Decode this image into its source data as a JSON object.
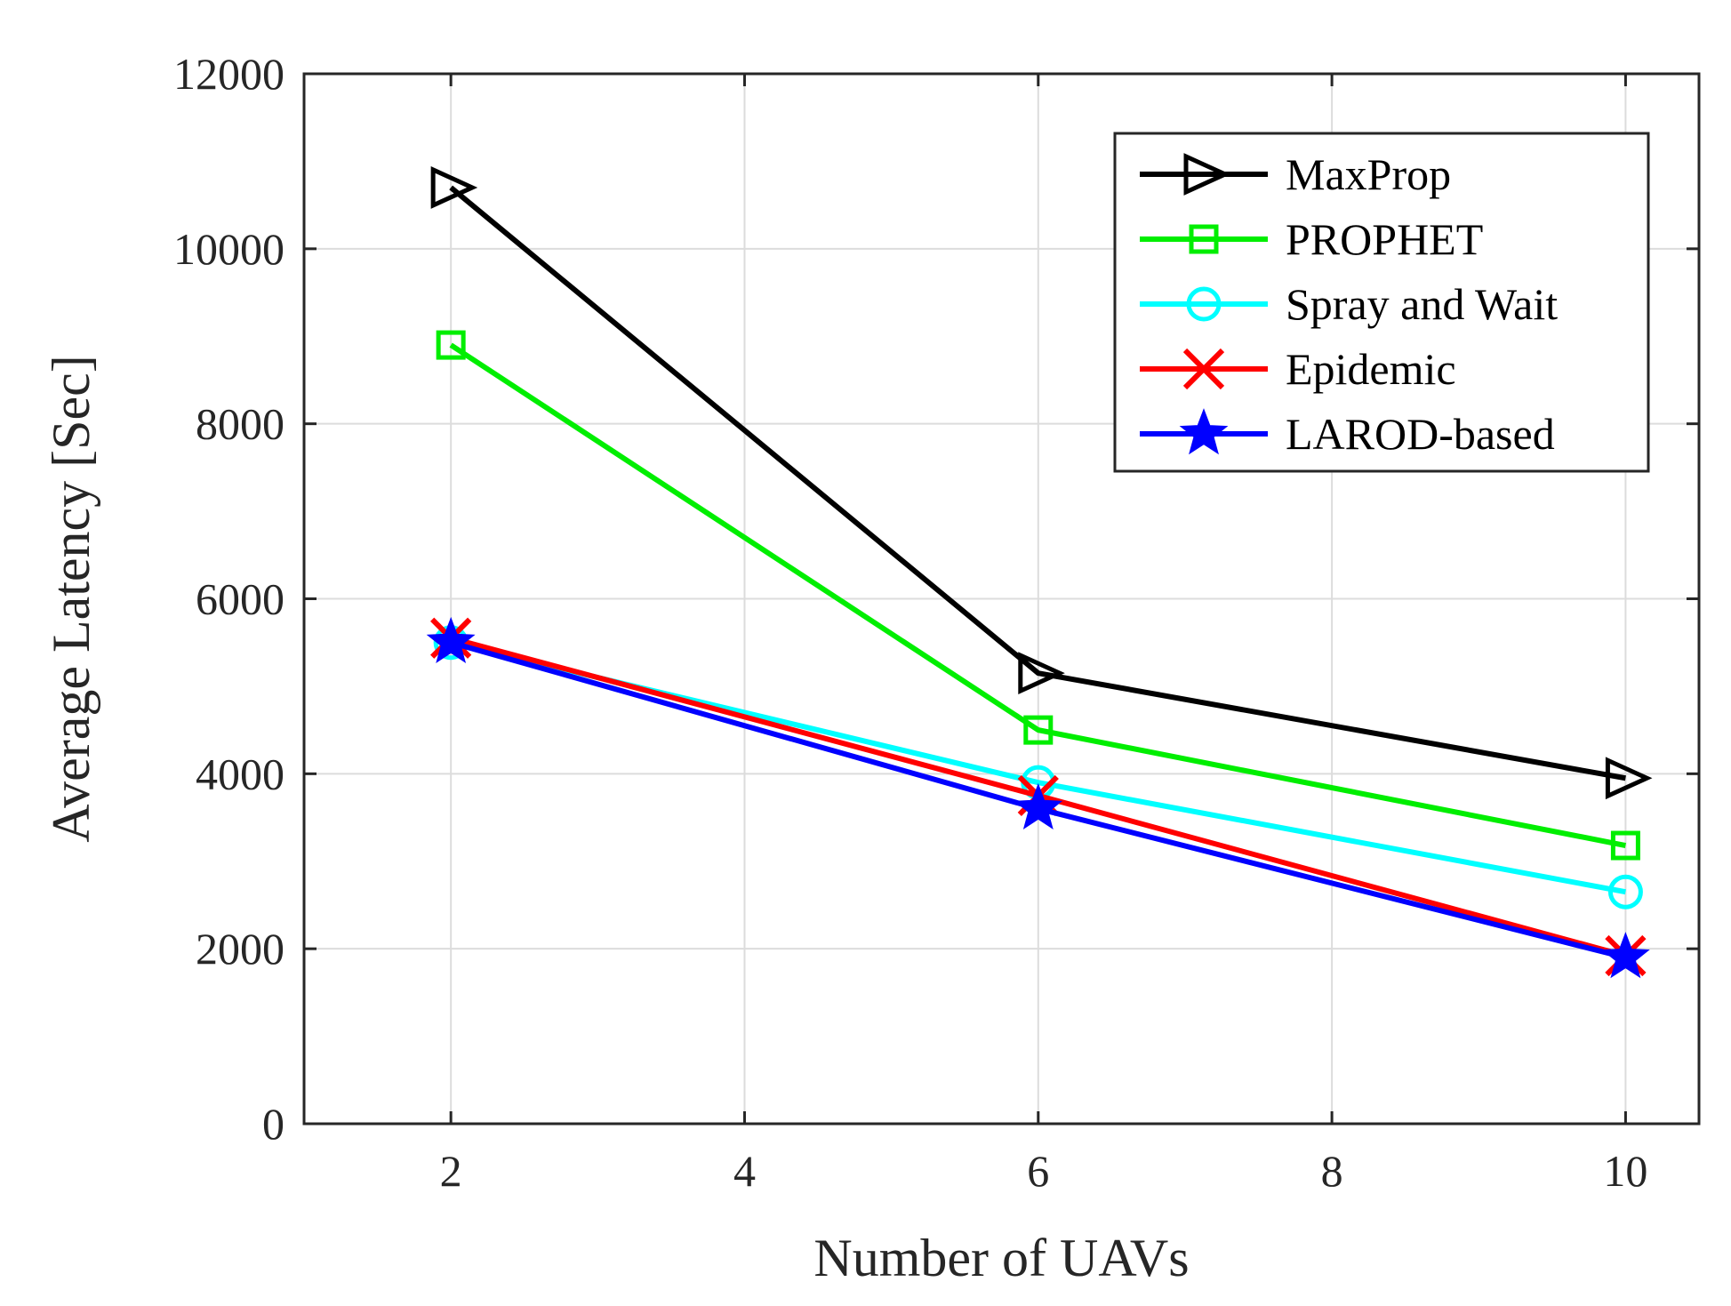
{
  "chart_data": {
    "type": "line",
    "title": "",
    "xlabel": "Number of UAVs",
    "ylabel": "Average Latency [Sec]",
    "xlim": [
      1,
      10.5
    ],
    "ylim": [
      0,
      12000
    ],
    "xticks": [
      2,
      4,
      6,
      8,
      10
    ],
    "xtick_labels": [
      "2",
      "4",
      "6",
      "8",
      "10"
    ],
    "yticks": [
      0,
      2000,
      4000,
      6000,
      8000,
      10000,
      12000
    ],
    "ytick_labels": [
      "0",
      "2000",
      "4000",
      "6000",
      "8000",
      "10000",
      "12000"
    ],
    "grid": true,
    "legend_position": "top-right",
    "x": [
      2,
      6,
      10
    ],
    "series": [
      {
        "name": "MaxProp",
        "color": "#000000",
        "marker": "triangle-right",
        "values": [
          10700,
          5150,
          3950
        ]
      },
      {
        "name": "PROPHET",
        "color": "#00ee00",
        "marker": "square",
        "values": [
          8900,
          4500,
          3180
        ]
      },
      {
        "name": "Spray and Wait",
        "color": "#00ffff",
        "marker": "circle",
        "values": [
          5500,
          3900,
          2650
        ]
      },
      {
        "name": "Epidemic",
        "color": "#ff0000",
        "marker": "x",
        "values": [
          5550,
          3750,
          1920
        ]
      },
      {
        "name": "LAROD-based",
        "color": "#0000ff",
        "marker": "star",
        "values": [
          5500,
          3600,
          1900
        ]
      }
    ]
  }
}
